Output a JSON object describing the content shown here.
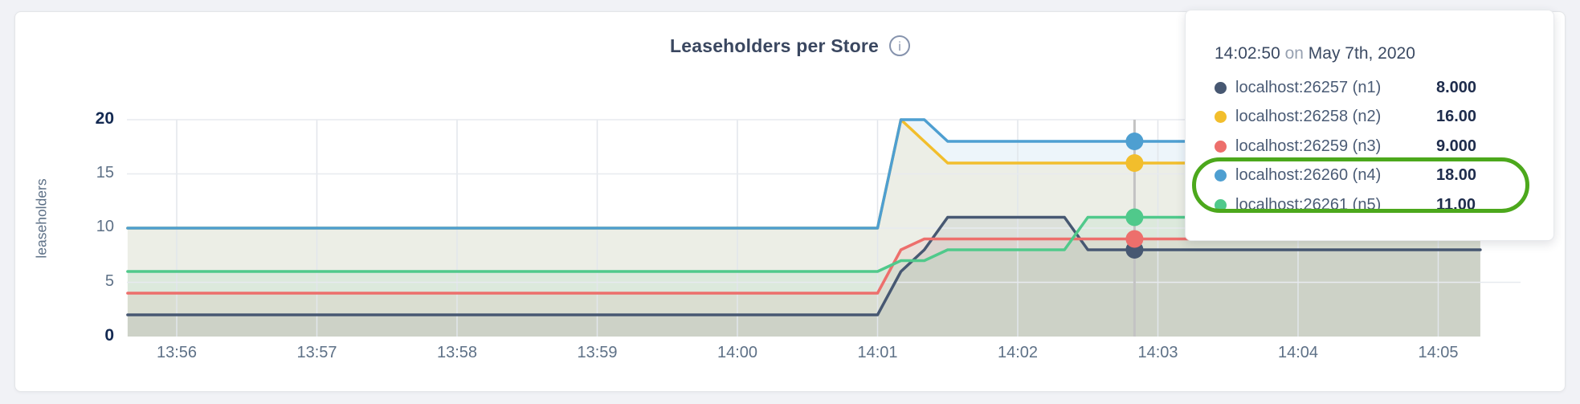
{
  "panel": {
    "title": "Leaseholders per Store",
    "info_icon": "i"
  },
  "tooltip": {
    "time": "14:02:50",
    "on_word": "on",
    "date": "May 7th, 2020",
    "rows": [
      {
        "id": "n1",
        "label": "localhost:26257 (n1)",
        "value": "8.000",
        "color": "#475872",
        "highlighted": false
      },
      {
        "id": "n2",
        "label": "localhost:26258 (n2)",
        "value": "16.00",
        "color": "#F2BE2C",
        "highlighted": false
      },
      {
        "id": "n3",
        "label": "localhost:26259 (n3)",
        "value": "9.000",
        "color": "#ED6F6C",
        "highlighted": false
      },
      {
        "id": "n4",
        "label": "localhost:26260 (n4)",
        "value": "18.00",
        "color": "#4E9FD1",
        "highlighted": true
      },
      {
        "id": "n5",
        "label": "localhost:26261 (n5)",
        "value": "11.00",
        "color": "#50C98B",
        "highlighted": true
      }
    ],
    "highlight_color": "#4CA81C"
  },
  "chart_data": {
    "type": "area",
    "title": "Leaseholders per Store",
    "xlabel": "",
    "ylabel": "leaseholders",
    "ylim": [
      0,
      20
    ],
    "y_ticks": [
      0,
      5,
      10,
      15,
      20
    ],
    "y_ticks_bold": [
      0,
      20
    ],
    "x_origin": "13:56:00",
    "x_ticks": [
      "13:56",
      "13:57",
      "13:58",
      "13:59",
      "14:00",
      "14:01",
      "14:02",
      "14:03",
      "14:04",
      "14:05"
    ],
    "x_start": "13:55:39",
    "x_end": "14:05:18",
    "grid": true,
    "legend_position": "tooltip-overlay",
    "hover": {
      "time": "14:02:50",
      "values": {
        "n1": 8,
        "n2": 16,
        "n3": 9,
        "n4": 18,
        "n5": 11
      }
    },
    "series": [
      {
        "id": "n1",
        "name": "localhost:26257 (n1)",
        "color": "#475872",
        "points": [
          [
            "13:55:39",
            2
          ],
          [
            "14:01:00",
            2
          ],
          [
            "14:01:10",
            6
          ],
          [
            "14:01:20",
            8
          ],
          [
            "14:01:30",
            11
          ],
          [
            "14:02:20",
            11
          ],
          [
            "14:02:30",
            8
          ],
          [
            "14:05:18",
            8
          ]
        ]
      },
      {
        "id": "n2",
        "name": "localhost:26258 (n2)",
        "color": "#F2BE2C",
        "points": [
          [
            "13:55:39",
            10
          ],
          [
            "14:01:00",
            10
          ],
          [
            "14:01:10",
            20
          ],
          [
            "14:01:20",
            18
          ],
          [
            "14:01:30",
            16
          ],
          [
            "14:05:18",
            16
          ]
        ]
      },
      {
        "id": "n3",
        "name": "localhost:26259 (n3)",
        "color": "#ED6F6C",
        "points": [
          [
            "13:55:39",
            4
          ],
          [
            "14:01:00",
            4
          ],
          [
            "14:01:10",
            8
          ],
          [
            "14:01:20",
            9
          ],
          [
            "14:05:18",
            9
          ]
        ]
      },
      {
        "id": "n4",
        "name": "localhost:26260 (n4)",
        "color": "#4E9FD1",
        "points": [
          [
            "13:55:39",
            10
          ],
          [
            "14:01:00",
            10
          ],
          [
            "14:01:10",
            20
          ],
          [
            "14:01:20",
            20
          ],
          [
            "14:01:30",
            18
          ],
          [
            "14:05:18",
            18
          ]
        ]
      },
      {
        "id": "n5",
        "name": "localhost:26261 (n5)",
        "color": "#50C98B",
        "points": [
          [
            "13:55:39",
            6
          ],
          [
            "14:01:00",
            6
          ],
          [
            "14:01:10",
            7
          ],
          [
            "14:01:20",
            7
          ],
          [
            "14:01:30",
            8
          ],
          [
            "14:02:20",
            8
          ],
          [
            "14:02:30",
            11
          ],
          [
            "14:05:18",
            11
          ]
        ]
      }
    ]
  }
}
